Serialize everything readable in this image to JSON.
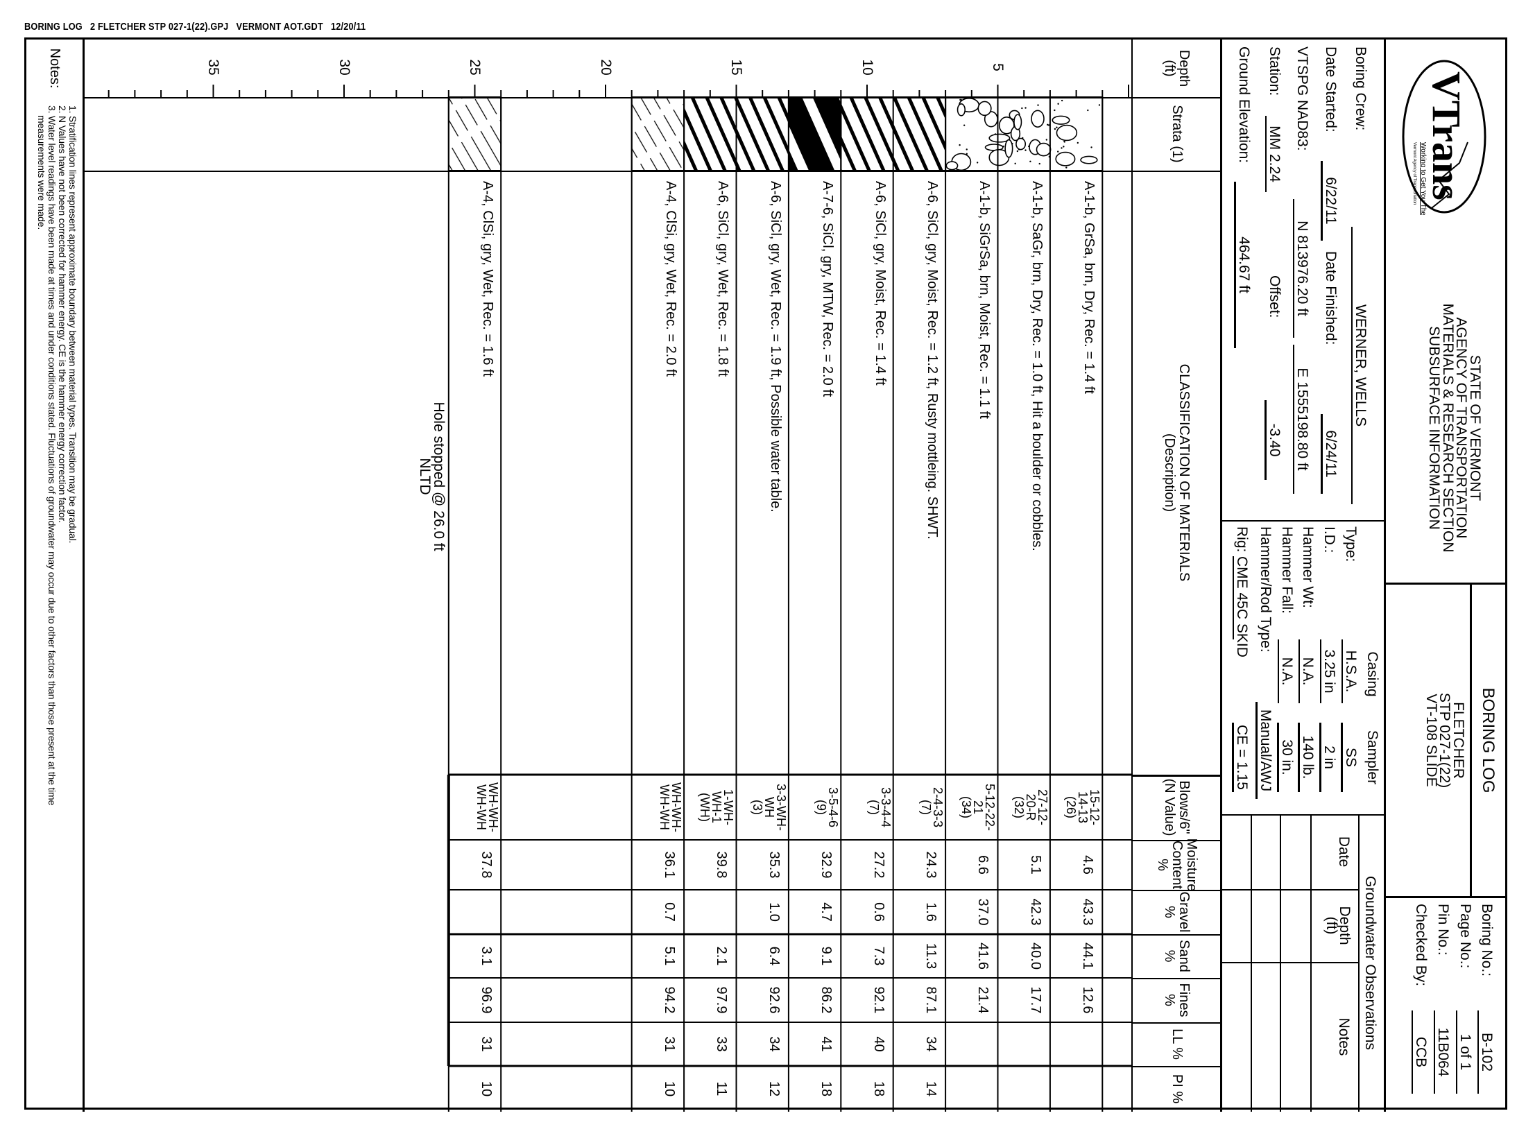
{
  "file_header": "BORING LOG   2 FLETCHER STP 027-1(22).GPJ   VERMONT AOT.GDT   12/20/11",
  "logo": {
    "name": "VTrans",
    "tagline": "Working to Get You There",
    "subtagline": "Vermont Agency of Transportation"
  },
  "agency": [
    "STATE OF VERMONT",
    "AGENCY OF TRANSPORTATION",
    "MATERIALS & RESEARCH SECTION",
    "SUBSURFACE INFORMATION"
  ],
  "title": {
    "heading": "BORING LOG",
    "project": [
      "FLETCHER",
      "STP 027-1(22)",
      "VT-108 SLIDE"
    ]
  },
  "ids": {
    "boring_no_label": "Boring No.:",
    "boring_no": "B-102",
    "page_no_label": "Page No.:",
    "page_no": "1 of 1",
    "pin_no_label": "Pin No.:",
    "pin_no": "11B064",
    "checked_by_label": "Checked By:",
    "checked_by": "CCB"
  },
  "site": {
    "boring_crew_label": "Boring Crew:",
    "boring_crew": "WERNER, WELLS",
    "date_started_label": "Date Started:",
    "date_started": "6/22/11",
    "date_finished_label": "Date Finished:",
    "date_finished": "6/24/11",
    "nad_label": "VTSPG NAD83:",
    "northing": "N 813976.20 ft",
    "easting": "E 1555198.80 ft",
    "station_label": "Station:",
    "station": "MM 2.24",
    "offset_label": "Offset:",
    "offset": "-3.40",
    "elevation_label": "Ground Elevation:",
    "elevation": "464.67 ft"
  },
  "equipment": {
    "casing_label": "Casing",
    "sampler_label": "Sampler",
    "rows": [
      {
        "label": "Type:",
        "casing": "H.S.A.",
        "sampler": "SS"
      },
      {
        "label": "I.D.:",
        "casing": "3.25 in",
        "sampler": "2 in"
      },
      {
        "label": "Hammer Wt:",
        "casing": "N.A.",
        "sampler": "140 lb."
      },
      {
        "label": "Hammer Fall:",
        "casing": "N.A.",
        "sampler": "30 in."
      },
      {
        "label": "Hammer/Rod Type:",
        "casing": "",
        "sampler": "Manual/AWJ"
      },
      {
        "label": "Rig:",
        "casing": "CME 45C SKID",
        "sampler": "CE = 1.15"
      }
    ]
  },
  "groundwater": {
    "title": "Groundwater Observations",
    "date_label": "Date",
    "depth_label": [
      "Depth",
      "(ft)"
    ],
    "notes_label": "Notes"
  },
  "columns": {
    "depth": [
      "Depth",
      "(ft)"
    ],
    "strata": [
      "Strata (1)"
    ],
    "classification": [
      "CLASSIFICATION OF MATERIALS",
      "(Description)"
    ],
    "blows": [
      "Blows/6\"",
      "(N Value)"
    ],
    "moisture": [
      "Moisture",
      "Content %"
    ],
    "gravel": [
      "Gravel %"
    ],
    "sand": [
      "Sand %"
    ],
    "fines": [
      "Fines %"
    ],
    "ll": [
      "LL %"
    ],
    "pi": [
      "PI %"
    ]
  },
  "depth_ticks": [
    5,
    10,
    15,
    20,
    25,
    30,
    35
  ],
  "strata": [
    {
      "from": 1,
      "to": 7,
      "pattern": "gravel-sand"
    },
    {
      "from": 7,
      "to": 11,
      "pattern": "clay-stripes"
    },
    {
      "from": 11,
      "to": 13,
      "pattern": "heavy-clay"
    },
    {
      "from": 13,
      "to": 17,
      "pattern": "clay-stripes"
    },
    {
      "from": 17,
      "to": 19,
      "pattern": "silt-hatch"
    },
    {
      "from": 24,
      "to": 26,
      "pattern": "silt-hatch"
    }
  ],
  "samples": [
    {
      "from": 1,
      "to": 3,
      "description": "A-1-b, GrSa, brn, Dry, Rec. = 1.4 ft",
      "blows": [
        "15-12-",
        "14-13",
        "(26)"
      ],
      "moisture": "4.6",
      "gravel": "43.3",
      "sand": "44.1",
      "fines": "12.6",
      "ll": "",
      "pi": ""
    },
    {
      "from": 3,
      "to": 5,
      "description": "A-1-b, SaGr, brn, Dry, Rec. = 1.0 ft, Hit a boulder or cobbles.",
      "blows": [
        "27-12-",
        "20-R",
        "(32)"
      ],
      "moisture": "5.1",
      "gravel": "42.3",
      "sand": "40.0",
      "fines": "17.7",
      "ll": "",
      "pi": ""
    },
    {
      "from": 5,
      "to": 7,
      "description": "A-1-b, SiGrSa, brn, Moist, Rec. = 1.1 ft",
      "blows": [
        "5-12-22-",
        "21",
        "(34)"
      ],
      "moisture": "6.6",
      "gravel": "37.0",
      "sand": "41.6",
      "fines": "21.4",
      "ll": "",
      "pi": ""
    },
    {
      "from": 7,
      "to": 9,
      "description": "A-6, SiCl, gry, Moist, Rec. = 1.2 ft, Rusty mottleing. SHWT.",
      "blows": [
        "2-4-3-3",
        "(7)"
      ],
      "moisture": "24.3",
      "gravel": "1.6",
      "sand": "11.3",
      "fines": "87.1",
      "ll": "34",
      "pi": "14"
    },
    {
      "from": 9,
      "to": 11,
      "description": "A-6, SiCl, gry, Moist, Rec. = 1.4 ft",
      "blows": [
        "3-3-4-4",
        "(7)"
      ],
      "moisture": "27.2",
      "gravel": "0.6",
      "sand": "7.3",
      "fines": "92.1",
      "ll": "40",
      "pi": "18"
    },
    {
      "from": 11,
      "to": 13,
      "description": "A-7-6, SiCl, gry, MTW, Rec. = 2.0 ft",
      "blows": [
        "3-5-4-6",
        "(9)"
      ],
      "moisture": "32.9",
      "gravel": "4.7",
      "sand": "9.1",
      "fines": "86.2",
      "ll": "41",
      "pi": "18"
    },
    {
      "from": 13,
      "to": 15,
      "description": "A-6, SiCl, gry, Wet, Rec. = 1.9 ft, Possible water table.",
      "blows": [
        "3-3-WH-",
        "WH",
        "(3)"
      ],
      "moisture": "35.3",
      "gravel": "1.0",
      "sand": "6.4",
      "fines": "92.6",
      "ll": "34",
      "pi": "12"
    },
    {
      "from": 15,
      "to": 17,
      "description": "A-6, SiCl, gry, Wet, Rec. = 1.8 ft",
      "blows": [
        "1-WH-",
        "WH-1",
        "(WH)"
      ],
      "moisture": "39.8",
      "gravel": "",
      "sand": "2.1",
      "fines": "97.9",
      "ll": "33",
      "pi": "11"
    },
    {
      "from": 17,
      "to": 19,
      "description": "A-4, ClSi, gry, Wet, Rec. = 2.0 ft",
      "blows": [
        "WH-WH-",
        "WH-WH"
      ],
      "moisture": "36.1",
      "gravel": "0.7",
      "sand": "5.1",
      "fines": "94.2",
      "ll": "31",
      "pi": "10"
    },
    {
      "from": 24,
      "to": 26,
      "description": "A-4, ClSi, gry, Wet, Rec. = 1.6 ft",
      "blows": [
        "WH-WH-",
        "WH-WH"
      ],
      "moisture": "37.8",
      "gravel": "",
      "sand": "3.1",
      "fines": "96.9",
      "ll": "31",
      "pi": "10"
    }
  ],
  "end_note": [
    "Hole stopped @ 26.0 ft",
    "NLTD"
  ],
  "notes": {
    "label": "Notes:",
    "lines": [
      "1. Stratification lines represent approximate boundary between material types. Transition may be gradual.",
      "2. N Values have not been corrected for hammer energy. CE is the hammer energy correction factor.",
      "3. Water level readings have been made at times and under conditions stated. Fluctuations of groundwater may occur due to other factors than those present at the time",
      "measurements were made."
    ]
  }
}
